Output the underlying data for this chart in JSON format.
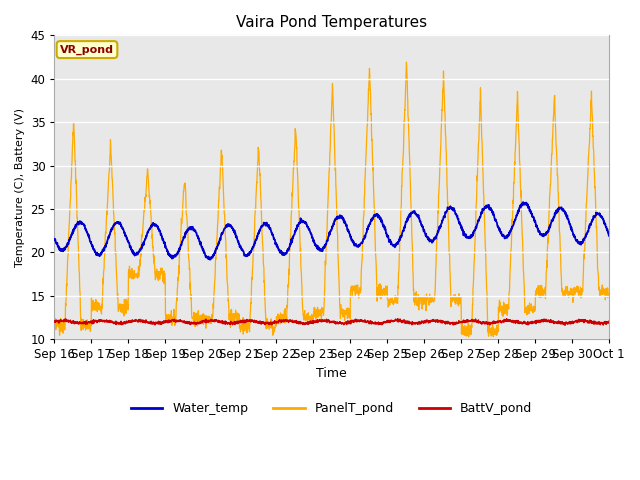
{
  "title": "Vaira Pond Temperatures",
  "xlabel": "Time",
  "ylabel": "Temperature (C), Battery (V)",
  "ylim": [
    10,
    45
  ],
  "site_label": "VR_pond",
  "legend_entries": [
    "Water_temp",
    "PanelT_pond",
    "BattV_pond"
  ],
  "colors": {
    "water": "#0000cc",
    "panel": "#ffaa00",
    "batt": "#cc0000",
    "bg_shade": "#e8e8e8"
  },
  "x_tick_labels": [
    "Sep 16",
    "Sep 17",
    "Sep 18",
    "Sep 19",
    "Sep 20",
    "Sep 21",
    "Sep 22",
    "Sep 23",
    "Sep 24",
    "Sep 25",
    "Sep 26",
    "Sep 27",
    "Sep 28",
    "Sep 29",
    "Sep 30",
    "Oct 1"
  ],
  "n_days": 15,
  "panel_peaks": [
    35.3,
    32.5,
    29.5,
    28.8,
    32.0,
    32.5,
    34.5,
    39.5,
    41.3,
    41.8,
    40.7,
    38.5,
    38.0,
    38.0,
    38.0
  ],
  "panel_troughs": [
    11.5,
    13.8,
    17.5,
    12.5,
    12.5,
    11.5,
    12.5,
    13.0,
    15.5,
    14.5,
    14.5,
    11.0,
    13.5,
    15.5,
    15.5
  ],
  "water_anchors_x": [
    0,
    1,
    2,
    3,
    4,
    5,
    6,
    7,
    8,
    9,
    10,
    11,
    12,
    13,
    14,
    15
  ],
  "water_anchors_y": [
    22.2,
    21.5,
    21.7,
    21.3,
    21.0,
    21.5,
    21.5,
    22.0,
    22.5,
    22.5,
    23.0,
    23.5,
    23.5,
    24.0,
    23.0,
    22.5
  ],
  "water_amp": 1.8,
  "batt_base": 12.0,
  "batt_amp": 0.15
}
